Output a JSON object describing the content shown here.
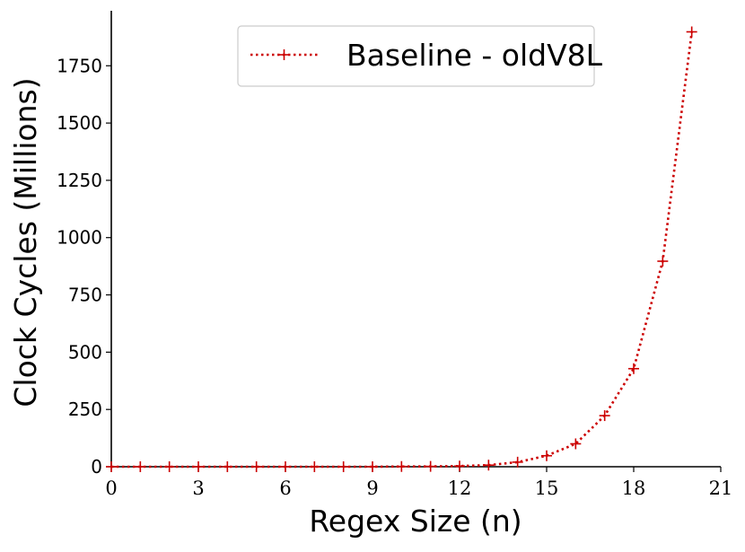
{
  "chart_data": {
    "type": "line",
    "title": "",
    "xlabel": "Regex Size (n)",
    "ylabel": "Clock Cycles (Millions)",
    "xlim": [
      0,
      21
    ],
    "ylim": [
      0,
      1990
    ],
    "xticks": [
      0,
      3,
      6,
      9,
      12,
      15,
      18,
      21
    ],
    "yticks": [
      0,
      250,
      500,
      750,
      1000,
      1250,
      1500,
      1750
    ],
    "legend_position": "upper-center",
    "series": [
      {
        "name": "Baseline - oldV8L",
        "color": "#cc0000",
        "line_style": "dotted",
        "marker": "plus",
        "x": [
          0,
          1,
          2,
          3,
          4,
          5,
          6,
          7,
          8,
          9,
          10,
          11,
          12,
          13,
          14,
          15,
          16,
          17,
          18,
          19,
          20
        ],
        "y": [
          0,
          0,
          0,
          0,
          0,
          0,
          0,
          0,
          0,
          0,
          1,
          1.5,
          3,
          7,
          20,
          48,
          100,
          223,
          428,
          897,
          1898
        ]
      }
    ]
  }
}
